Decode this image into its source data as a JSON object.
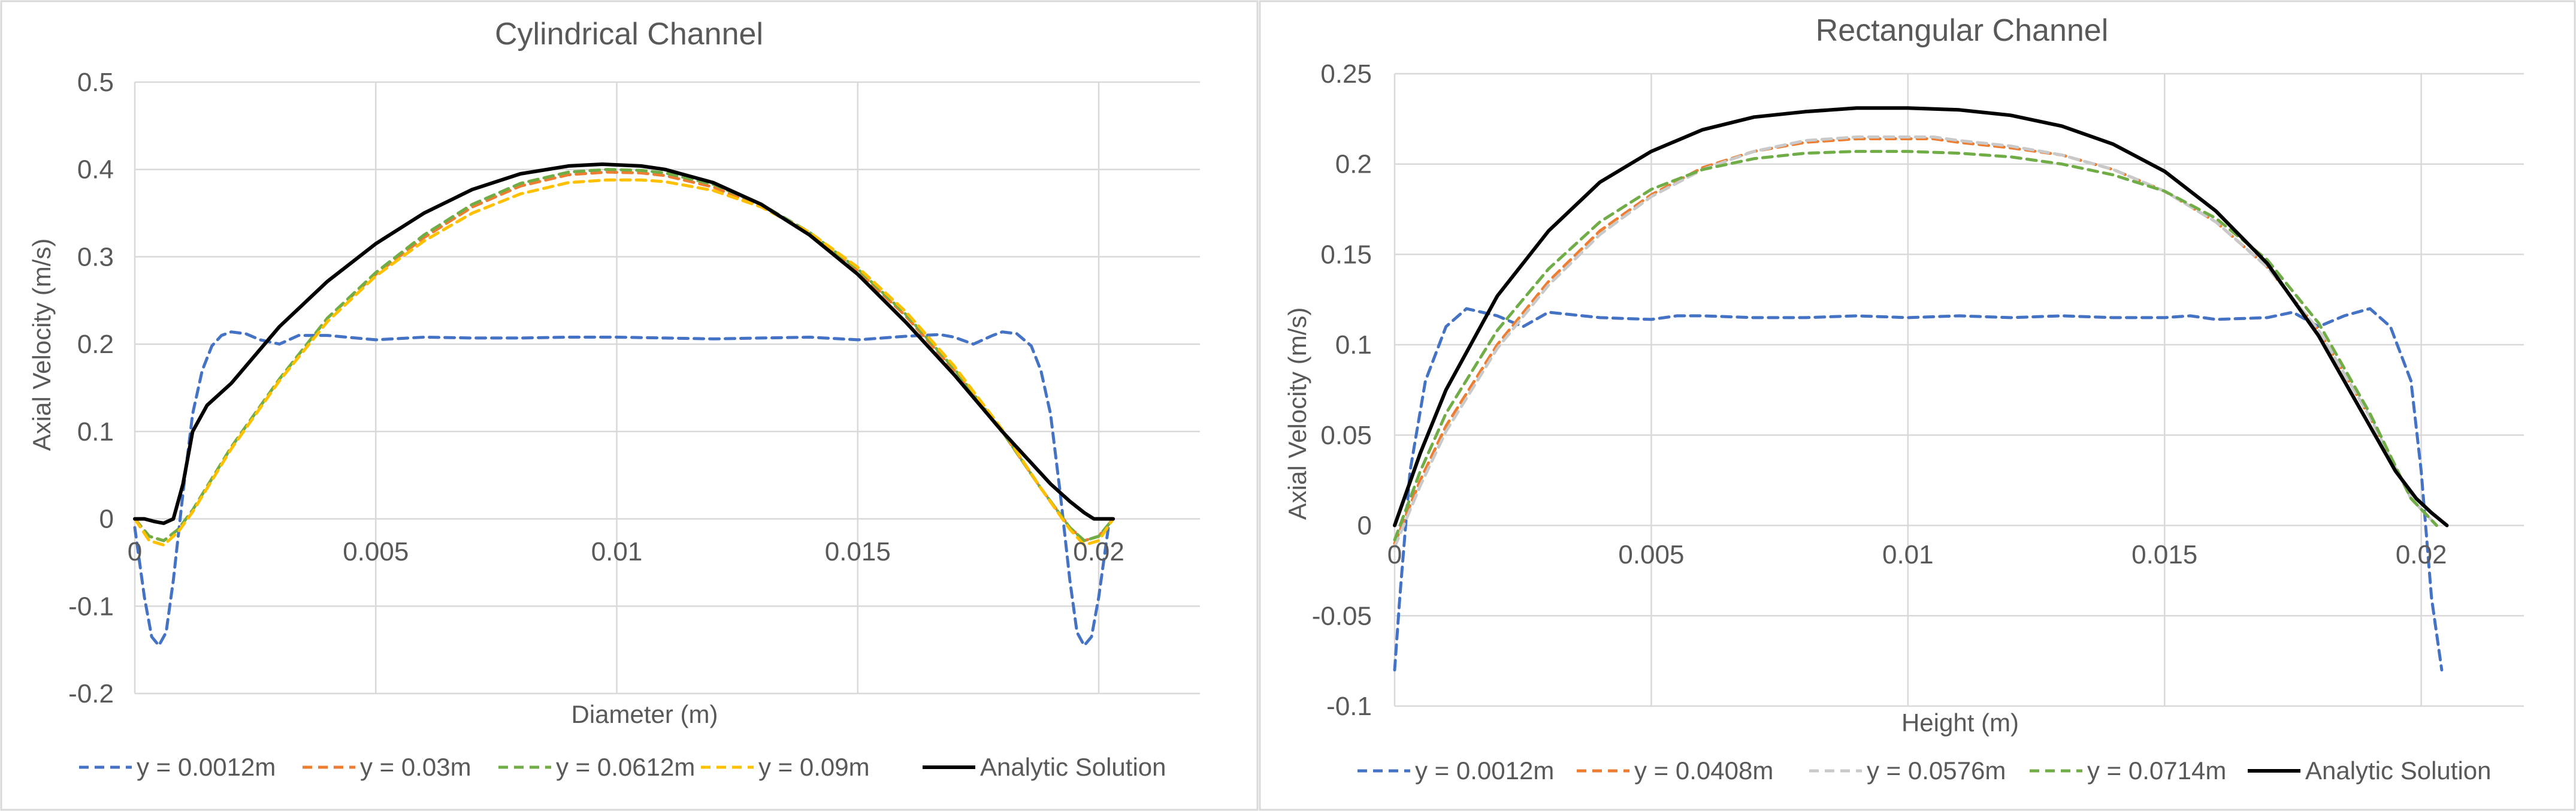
{
  "chart_data": [
    {
      "type": "line",
      "title": "Cylindrical Channel",
      "xlabel": "Diameter (m)",
      "ylabel": "Axial Velocity (m/s)",
      "xlim": [
        0,
        0.0221
      ],
      "ylim": [
        -0.2,
        0.5
      ],
      "xticks": [
        0,
        0.005,
        0.01,
        0.015,
        0.02
      ],
      "xtick_labels": [
        "0",
        "0.005",
        "0.01",
        "0.015",
        "0.02"
      ],
      "yticks": [
        -0.2,
        -0.1,
        0,
        0.1,
        0.2,
        0.3,
        0.4,
        0.5
      ],
      "ytick_labels": [
        "-0.2",
        "-0.1",
        "0",
        "0.1",
        "0.2",
        "0.3",
        "0.4",
        "0.5"
      ],
      "grid": true,
      "legend": "bottom",
      "series": [
        {
          "name": "y = 0.0012m",
          "color": "#4472c4",
          "dash": "dashed",
          "x": [
            0,
            0.0002,
            0.00035,
            0.0005,
            0.00065,
            0.0008,
            0.001,
            0.0012,
            0.0014,
            0.0016,
            0.0018,
            0.002,
            0.0023,
            0.0026,
            0.003,
            0.0034,
            0.004,
            0.005,
            0.006,
            0.007,
            0.008,
            0.009,
            0.01,
            0.011,
            0.012,
            0.013,
            0.014,
            0.015,
            0.016,
            0.0167,
            0.017,
            0.0174,
            0.0178,
            0.018,
            0.0183,
            0.0186,
            0.0188,
            0.019,
            0.0192,
            0.0194,
            0.01955,
            0.0197,
            0.01985,
            0.02,
            0.0202
          ],
          "y": [
            -0.01,
            -0.09,
            -0.135,
            -0.145,
            -0.13,
            -0.07,
            0.03,
            0.12,
            0.17,
            0.198,
            0.21,
            0.214,
            0.212,
            0.205,
            0.2,
            0.21,
            0.21,
            0.205,
            0.208,
            0.207,
            0.207,
            0.208,
            0.208,
            0.207,
            0.206,
            0.207,
            0.208,
            0.205,
            0.209,
            0.211,
            0.208,
            0.2,
            0.21,
            0.214,
            0.212,
            0.198,
            0.17,
            0.12,
            0.03,
            -0.07,
            -0.13,
            -0.145,
            -0.135,
            -0.09,
            -0.01
          ]
        },
        {
          "name": "y = 0.03m",
          "color": "#ed7d31",
          "dash": "dashed",
          "x": [
            0,
            0.0003,
            0.0006,
            0.0009,
            0.0012,
            0.002,
            0.003,
            0.004,
            0.005,
            0.006,
            0.007,
            0.008,
            0.009,
            0.0098,
            0.0105,
            0.011,
            0.012,
            0.013,
            0.014,
            0.015,
            0.016,
            0.017,
            0.018,
            0.0188,
            0.0194,
            0.0197,
            0.02,
            0.0203
          ],
          "y": [
            0,
            -0.02,
            -0.025,
            -0.012,
            0.01,
            0.082,
            0.16,
            0.23,
            0.28,
            0.322,
            0.357,
            0.381,
            0.394,
            0.397,
            0.396,
            0.393,
            0.38,
            0.358,
            0.326,
            0.284,
            0.232,
            0.17,
            0.1,
            0.035,
            -0.01,
            -0.025,
            -0.02,
            0
          ]
        },
        {
          "name": "y = 0.0612m",
          "color": "#70ad47",
          "dash": "dashed",
          "x": [
            0,
            0.0003,
            0.0006,
            0.0009,
            0.0012,
            0.002,
            0.003,
            0.004,
            0.005,
            0.006,
            0.007,
            0.008,
            0.009,
            0.0098,
            0.0105,
            0.011,
            0.012,
            0.013,
            0.014,
            0.015,
            0.016,
            0.017,
            0.018,
            0.0188,
            0.0194,
            0.0197,
            0.02,
            0.0203
          ],
          "y": [
            0,
            -0.02,
            -0.025,
            -0.012,
            0.01,
            0.082,
            0.16,
            0.23,
            0.282,
            0.325,
            0.36,
            0.384,
            0.397,
            0.4,
            0.399,
            0.396,
            0.383,
            0.36,
            0.328,
            0.286,
            0.234,
            0.172,
            0.1,
            0.035,
            -0.01,
            -0.025,
            -0.02,
            0
          ]
        },
        {
          "name": "y = 0.09m",
          "color": "#ffc000",
          "dash": "dashed",
          "x": [
            0,
            0.0003,
            0.0006,
            0.0009,
            0.0012,
            0.002,
            0.003,
            0.004,
            0.005,
            0.006,
            0.007,
            0.008,
            0.009,
            0.0098,
            0.0105,
            0.011,
            0.012,
            0.013,
            0.014,
            0.015,
            0.016,
            0.017,
            0.018,
            0.0188,
            0.0194,
            0.0197,
            0.02,
            0.0203
          ],
          "y": [
            0,
            -0.025,
            -0.03,
            -0.015,
            0.008,
            0.08,
            0.158,
            0.226,
            0.278,
            0.318,
            0.35,
            0.372,
            0.385,
            0.388,
            0.388,
            0.386,
            0.376,
            0.357,
            0.328,
            0.288,
            0.237,
            0.175,
            0.102,
            0.035,
            -0.012,
            -0.03,
            -0.025,
            0
          ]
        },
        {
          "name": "Analytic Solution",
          "color": "#000000",
          "dash": "solid",
          "x": [
            0,
            0.0002,
            0.0004,
            0.0006,
            0.0008,
            0.001,
            0.0012,
            0.0015,
            0.002,
            0.003,
            0.004,
            0.005,
            0.006,
            0.007,
            0.008,
            0.009,
            0.0097,
            0.0105,
            0.011,
            0.012,
            0.013,
            0.014,
            0.015,
            0.016,
            0.017,
            0.018,
            0.019,
            0.0194,
            0.0197,
            0.0199,
            0.0201,
            0.0203
          ],
          "y": [
            0,
            0.0,
            -0.003,
            -0.005,
            0.0,
            0.04,
            0.1,
            0.13,
            0.155,
            0.22,
            0.272,
            0.315,
            0.35,
            0.377,
            0.395,
            0.404,
            0.406,
            0.404,
            0.4,
            0.385,
            0.36,
            0.325,
            0.28,
            0.225,
            0.165,
            0.1,
            0.04,
            0.02,
            0.007,
            0.0,
            0.0,
            0.0
          ]
        }
      ]
    },
    {
      "type": "line",
      "title": "Rectangular Channel",
      "xlabel": "Height (m)",
      "ylabel": "Axial Velocity (m/s)",
      "xlim": [
        0,
        0.022
      ],
      "ylim": [
        -0.1,
        0.25
      ],
      "xticks": [
        0,
        0.005,
        0.01,
        0.015,
        0.02
      ],
      "xtick_labels": [
        "0",
        "0.005",
        "0.01",
        "0.015",
        "0.02"
      ],
      "yticks": [
        -0.1,
        -0.05,
        0,
        0.05,
        0.1,
        0.15,
        0.2,
        0.25
      ],
      "ytick_labels": [
        "-0.1",
        "-0.05",
        "0",
        "0.05",
        "0.1",
        "0.15",
        "0.2",
        "0.25"
      ],
      "grid": true,
      "legend": "bottom",
      "series": [
        {
          "name": "y = 0.0012m",
          "color": "#4472c4",
          "dash": "dashed",
          "x": [
            0,
            0.0001,
            0.0003,
            0.0006,
            0.001,
            0.0014,
            0.002,
            0.0025,
            0.003,
            0.004,
            0.005,
            0.0055,
            0.006,
            0.007,
            0.008,
            0.009,
            0.01,
            0.011,
            0.012,
            0.013,
            0.014,
            0.015,
            0.0155,
            0.016,
            0.017,
            0.0175,
            0.018,
            0.0185,
            0.019,
            0.0194,
            0.0198,
            0.02,
            0.0202,
            0.0204
          ],
          "y": [
            -0.08,
            -0.04,
            0.03,
            0.08,
            0.11,
            0.12,
            0.116,
            0.11,
            0.118,
            0.115,
            0.114,
            0.116,
            0.116,
            0.115,
            0.115,
            0.116,
            0.115,
            0.116,
            0.115,
            0.116,
            0.115,
            0.115,
            0.116,
            0.114,
            0.115,
            0.118,
            0.11,
            0.116,
            0.12,
            0.11,
            0.08,
            0.03,
            -0.04,
            -0.08
          ]
        },
        {
          "name": "y = 0.0408m",
          "color": "#ed7d31",
          "dash": "dashed",
          "x": [
            0,
            0.0005,
            0.001,
            0.002,
            0.003,
            0.004,
            0.005,
            0.006,
            0.007,
            0.008,
            0.009,
            0.01,
            0.0105,
            0.011,
            0.012,
            0.013,
            0.014,
            0.015,
            0.016,
            0.017,
            0.018,
            0.019,
            0.0198,
            0.0203
          ],
          "y": [
            -0.01,
            0.025,
            0.055,
            0.1,
            0.135,
            0.163,
            0.183,
            0.198,
            0.207,
            0.212,
            0.214,
            0.214,
            0.214,
            0.212,
            0.209,
            0.205,
            0.197,
            0.185,
            0.168,
            0.143,
            0.108,
            0.06,
            0.015,
            0.0
          ]
        },
        {
          "name": "y = 0.0576m",
          "color": "#c9c9c9",
          "dash": "dashed",
          "x": [
            0,
            0.0005,
            0.001,
            0.002,
            0.003,
            0.004,
            0.005,
            0.006,
            0.007,
            0.008,
            0.009,
            0.01,
            0.0105,
            0.011,
            0.012,
            0.013,
            0.014,
            0.015,
            0.016,
            0.017,
            0.018,
            0.019,
            0.0198,
            0.0203
          ],
          "y": [
            -0.012,
            0.022,
            0.052,
            0.098,
            0.133,
            0.161,
            0.182,
            0.197,
            0.207,
            0.213,
            0.215,
            0.215,
            0.215,
            0.213,
            0.21,
            0.205,
            0.197,
            0.185,
            0.168,
            0.143,
            0.108,
            0.06,
            0.015,
            0.0
          ]
        },
        {
          "name": "y = 0.0714m",
          "color": "#70ad47",
          "dash": "dashed",
          "x": [
            0,
            0.0005,
            0.001,
            0.002,
            0.003,
            0.004,
            0.005,
            0.006,
            0.007,
            0.008,
            0.009,
            0.01,
            0.011,
            0.012,
            0.013,
            0.014,
            0.015,
            0.016,
            0.017,
            0.018,
            0.019,
            0.0198,
            0.0203
          ],
          "y": [
            -0.008,
            0.03,
            0.062,
            0.108,
            0.142,
            0.168,
            0.186,
            0.197,
            0.203,
            0.206,
            0.207,
            0.207,
            0.206,
            0.204,
            0.2,
            0.194,
            0.185,
            0.17,
            0.147,
            0.112,
            0.062,
            0.015,
            0.0
          ]
        },
        {
          "name": "Analytic Solution",
          "color": "#000000",
          "dash": "solid",
          "x": [
            0,
            0.0005,
            0.001,
            0.002,
            0.003,
            0.004,
            0.005,
            0.006,
            0.007,
            0.008,
            0.009,
            0.01,
            0.011,
            0.012,
            0.013,
            0.014,
            0.015,
            0.016,
            0.017,
            0.018,
            0.019,
            0.0195,
            0.0199,
            0.0202,
            0.0205
          ],
          "y": [
            0,
            0.04,
            0.075,
            0.127,
            0.163,
            0.19,
            0.207,
            0.219,
            0.226,
            0.229,
            0.231,
            0.231,
            0.23,
            0.227,
            0.221,
            0.211,
            0.196,
            0.174,
            0.145,
            0.105,
            0.055,
            0.03,
            0.015,
            0.007,
            0.0
          ]
        }
      ]
    }
  ]
}
